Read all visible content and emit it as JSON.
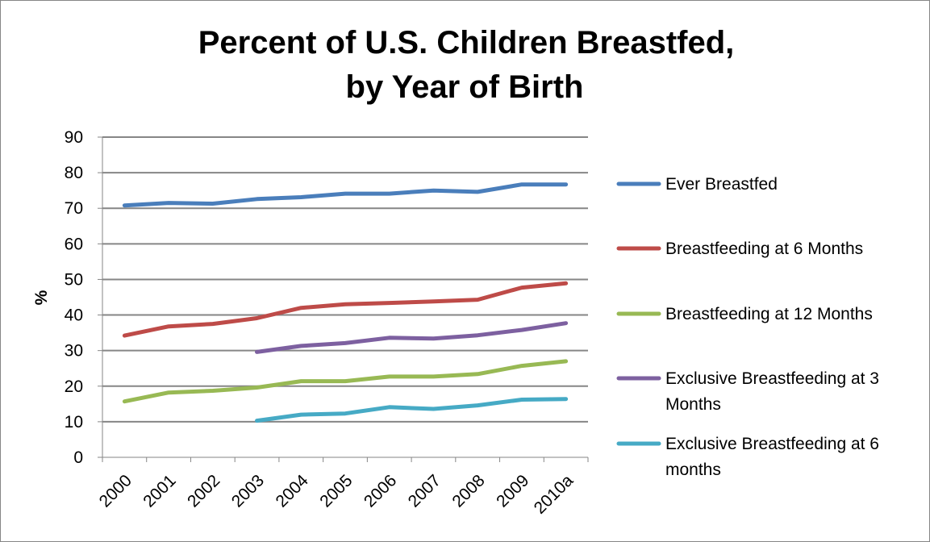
{
  "chart_data": {
    "type": "line",
    "title": [
      "Percent of U.S. Children Breastfed,",
      "by Year of Birth"
    ],
    "xlabel": "",
    "ylabel": "%",
    "ylim": [
      0,
      90
    ],
    "yticks": [
      "0",
      "10",
      "20",
      "30",
      "40",
      "50",
      "60",
      "70",
      "80",
      "90"
    ],
    "categories": [
      "2000",
      "2001",
      "2002",
      "2003",
      "2004",
      "2005",
      "2006",
      "2007",
      "2008",
      "2009",
      "2010a"
    ],
    "grid": true,
    "legend_position": "right",
    "series": [
      {
        "name": "Ever Breastfed",
        "legend_lines": [
          "Ever Breastfed"
        ],
        "color": "#4a7ebb",
        "values": [
          70.8,
          71.5,
          71.3,
          72.6,
          73.1,
          74.1,
          74.1,
          75.0,
          74.6,
          76.7,
          76.7
        ]
      },
      {
        "name": "Breastfeeding at 6 Months",
        "legend_lines": [
          "Breastfeeding at 6 Months"
        ],
        "color": "#be4b48",
        "values": [
          34.2,
          36.8,
          37.5,
          39.1,
          42.0,
          43.0,
          43.4,
          43.8,
          44.3,
          47.7,
          48.9
        ]
      },
      {
        "name": "Breastfeeding at 12 Months",
        "legend_lines": [
          "Breastfeeding at 12 Months"
        ],
        "color": "#98b954",
        "values": [
          15.7,
          18.2,
          18.7,
          19.6,
          21.4,
          21.4,
          22.7,
          22.7,
          23.4,
          25.7,
          27.0
        ]
      },
      {
        "name": "Exclusive Breastfeeding at 3 Months",
        "legend_lines": [
          "Exclusive Breastfeeding at 3",
          "Months"
        ],
        "color": "#7d60a0",
        "values": [
          null,
          null,
          null,
          29.6,
          31.3,
          32.1,
          33.6,
          33.4,
          34.3,
          35.8,
          37.7
        ]
      },
      {
        "name": "Exclusive Breastfeeding at 6 months",
        "legend_lines": [
          "Exclusive Breastfeeding at 6",
          "months"
        ],
        "color": "#46aac5",
        "values": [
          null,
          null,
          null,
          10.3,
          12.0,
          12.3,
          14.1,
          13.6,
          14.6,
          16.2,
          16.4
        ]
      }
    ]
  }
}
